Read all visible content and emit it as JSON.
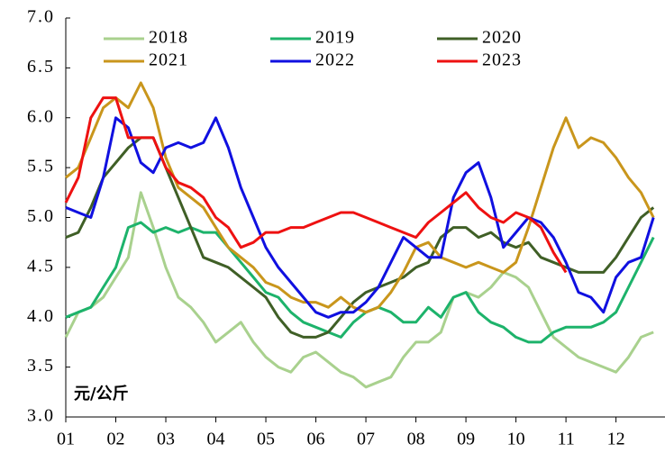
{
  "chart_data": {
    "type": "line",
    "y_label": "元/公斤",
    "x": [
      1,
      1.25,
      1.5,
      1.75,
      2,
      2.25,
      2.5,
      2.75,
      3,
      3.25,
      3.5,
      3.75,
      4,
      4.25,
      4.5,
      4.75,
      5,
      5.25,
      5.5,
      5.75,
      6,
      6.25,
      6.5,
      6.75,
      7,
      7.25,
      7.5,
      7.75,
      8,
      8.25,
      8.5,
      8.75,
      9,
      9.25,
      9.5,
      9.75,
      10,
      10.25,
      10.5,
      10.75,
      11,
      11.25,
      11.5,
      11.75,
      12,
      12.25,
      12.5,
      12.75
    ],
    "xlim": [
      1,
      12.98
    ],
    "xticks": [
      {
        "value": 1,
        "label": "01"
      },
      {
        "value": 2,
        "label": "02"
      },
      {
        "value": 3,
        "label": "03"
      },
      {
        "value": 4,
        "label": "04"
      },
      {
        "value": 5,
        "label": "05"
      },
      {
        "value": 6,
        "label": "06"
      },
      {
        "value": 7,
        "label": "07"
      },
      {
        "value": 8,
        "label": "08"
      },
      {
        "value": 9,
        "label": "09"
      },
      {
        "value": 10,
        "label": "10"
      },
      {
        "value": 11,
        "label": "11"
      },
      {
        "value": 12,
        "label": "12"
      }
    ],
    "ylim": [
      3,
      7
    ],
    "yticks": [
      {
        "value": 3,
        "label": "3.0"
      },
      {
        "value": 3.5,
        "label": "3.5"
      },
      {
        "value": 4,
        "label": "4.0"
      },
      {
        "value": 4.5,
        "label": "4.5"
      },
      {
        "value": 5,
        "label": "5.0"
      },
      {
        "value": 5.5,
        "label": "5.5"
      },
      {
        "value": 6,
        "label": "6.0"
      },
      {
        "value": 6.5,
        "label": "6.5"
      },
      {
        "value": 7,
        "label": "7.0"
      }
    ],
    "grid": false,
    "legend": "top",
    "series": [
      {
        "name": "2018",
        "color": "#a9d18e",
        "values": [
          3.8,
          4.05,
          4.1,
          4.2,
          4.4,
          4.6,
          5.25,
          4.9,
          4.5,
          4.2,
          4.1,
          3.95,
          3.75,
          3.85,
          3.95,
          3.75,
          3.6,
          3.5,
          3.45,
          3.6,
          3.65,
          3.55,
          3.45,
          3.4,
          3.3,
          3.35,
          3.4,
          3.6,
          3.75,
          3.75,
          3.85,
          4.2,
          4.25,
          4.2,
          4.3,
          4.45,
          4.4,
          4.3,
          4.05,
          3.8,
          3.7,
          3.6,
          3.55,
          3.5,
          3.45,
          3.6,
          3.8,
          3.85
        ]
      },
      {
        "name": "2019",
        "color": "#1db36b",
        "values": [
          4.0,
          4.05,
          4.1,
          4.3,
          4.5,
          4.9,
          4.95,
          4.85,
          4.9,
          4.85,
          4.9,
          4.85,
          4.85,
          4.7,
          4.55,
          4.4,
          4.25,
          4.2,
          4.05,
          3.95,
          3.9,
          3.85,
          3.8,
          3.95,
          4.05,
          4.1,
          4.05,
          3.95,
          3.95,
          4.1,
          4.0,
          4.2,
          4.25,
          4.05,
          3.95,
          3.9,
          3.8,
          3.75,
          3.75,
          3.85,
          3.9,
          3.9,
          3.9,
          3.95,
          4.05,
          4.3,
          4.55,
          4.8
        ]
      },
      {
        "name": "2020",
        "color": "#3f5f26",
        "values": [
          4.8,
          4.85,
          5.1,
          5.4,
          5.55,
          5.7,
          5.8,
          5.8,
          5.5,
          5.2,
          4.9,
          4.6,
          4.55,
          4.5,
          4.4,
          4.3,
          4.2,
          4.0,
          3.85,
          3.8,
          3.8,
          3.85,
          4.0,
          4.15,
          4.25,
          4.3,
          4.35,
          4.4,
          4.5,
          4.55,
          4.8,
          4.9,
          4.9,
          4.8,
          4.85,
          4.75,
          4.7,
          4.75,
          4.6,
          4.55,
          4.5,
          4.45,
          4.45,
          4.45,
          4.6,
          4.8,
          5.0,
          5.1
        ]
      },
      {
        "name": "2021",
        "color": "#c9961c",
        "values": [
          5.4,
          5.5,
          5.8,
          6.1,
          6.2,
          6.1,
          6.35,
          6.1,
          5.6,
          5.3,
          5.2,
          5.1,
          4.9,
          4.7,
          4.6,
          4.5,
          4.35,
          4.3,
          4.2,
          4.15,
          4.15,
          4.1,
          4.2,
          4.1,
          4.05,
          4.1,
          4.25,
          4.45,
          4.7,
          4.75,
          4.6,
          4.55,
          4.5,
          4.55,
          4.5,
          4.45,
          4.55,
          4.9,
          5.3,
          5.7,
          6.0,
          5.7,
          5.8,
          5.75,
          5.6,
          5.4,
          5.25,
          5.0
        ]
      },
      {
        "name": "2022",
        "color": "#1010e0",
        "values": [
          5.1,
          5.05,
          5.0,
          5.4,
          6.0,
          5.9,
          5.55,
          5.45,
          5.7,
          5.75,
          5.7,
          5.75,
          6.0,
          5.7,
          5.3,
          5.0,
          4.7,
          4.5,
          4.35,
          4.2,
          4.05,
          4.0,
          4.05,
          4.05,
          4.15,
          4.3,
          4.55,
          4.8,
          4.7,
          4.6,
          4.6,
          5.2,
          5.45,
          5.55,
          5.2,
          4.7,
          4.85,
          5.0,
          4.95,
          4.8,
          4.55,
          4.25,
          4.2,
          4.05,
          4.4,
          4.55,
          4.6,
          5.0
        ]
      },
      {
        "name": "2023",
        "color": "#ee1111",
        "values": [
          5.15,
          5.4,
          6.0,
          6.2,
          6.2,
          5.8,
          5.8,
          5.8,
          5.5,
          5.35,
          5.3,
          5.2,
          5.0,
          4.9,
          4.7,
          4.75,
          4.85,
          4.85,
          4.9,
          4.9,
          4.95,
          5.0,
          5.05,
          5.05,
          5.0,
          4.95,
          4.9,
          4.85,
          4.8,
          4.95,
          5.05,
          5.15,
          5.25,
          5.1,
          5.0,
          4.95,
          5.05,
          5.0,
          4.9,
          4.65,
          4.45,
          null,
          null,
          null,
          null,
          null,
          null,
          null
        ]
      }
    ]
  }
}
